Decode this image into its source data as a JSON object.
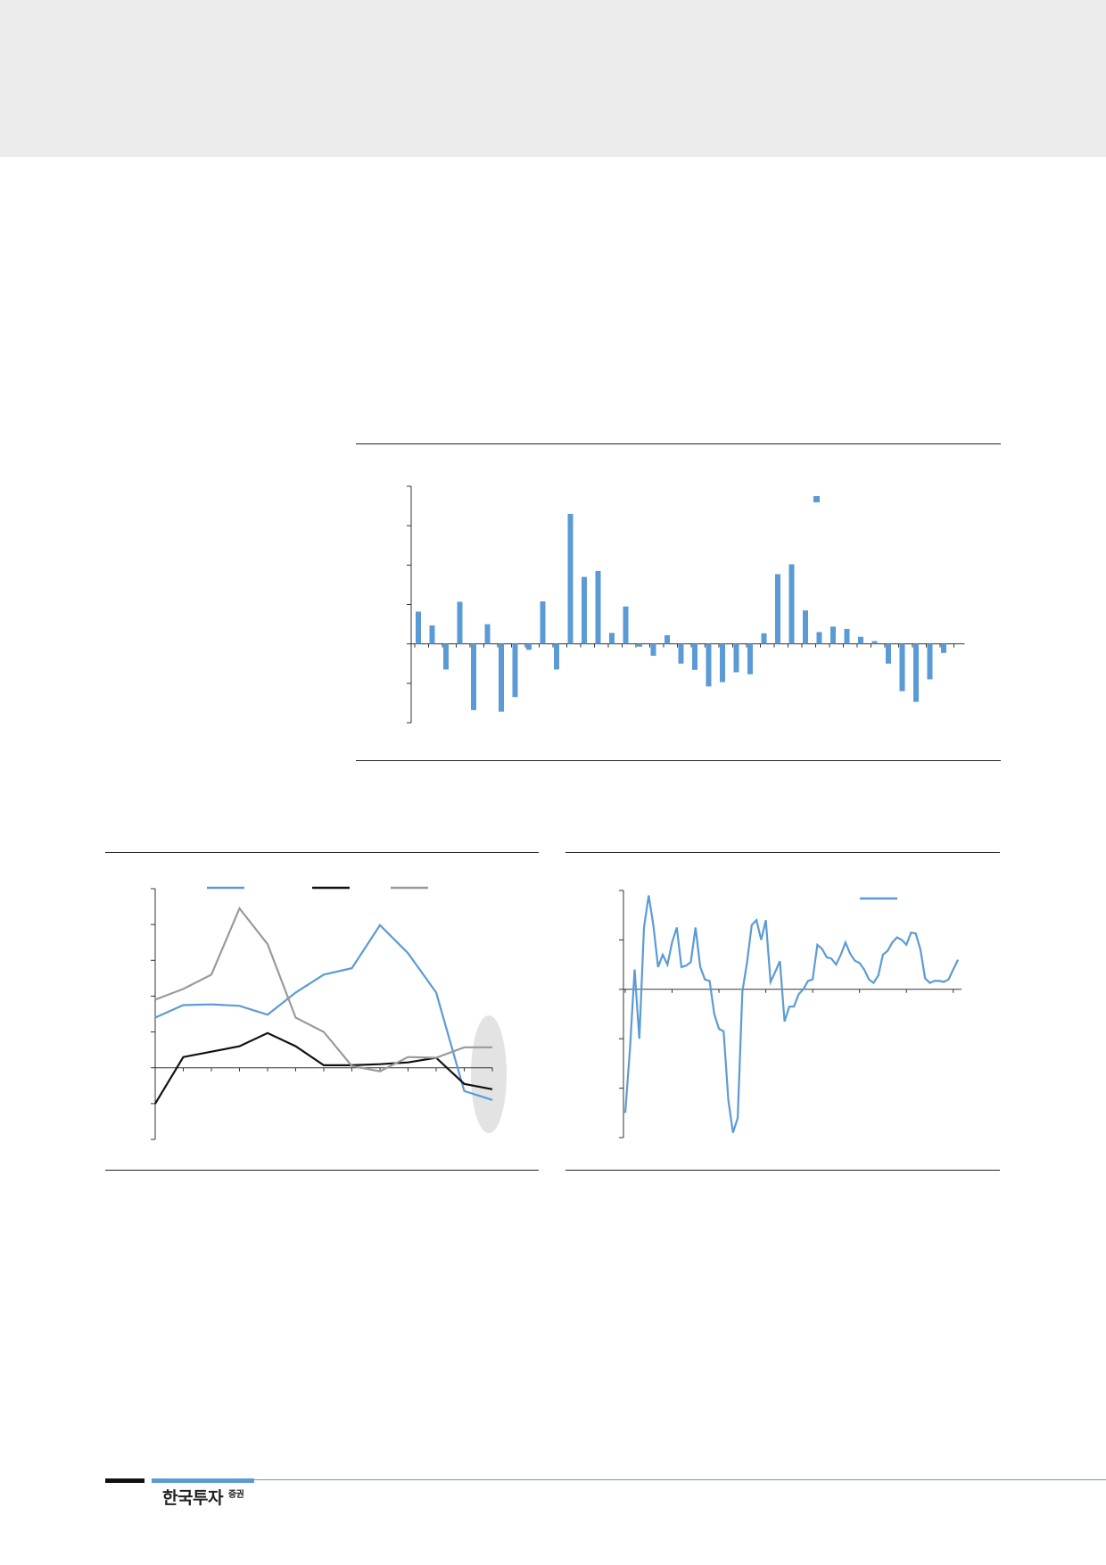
{
  "header": {
    "background": "#ebebeb"
  },
  "footer": {
    "logo_main": "한국투자",
    "logo_sub": "증권",
    "accent": "#5b9bd5"
  },
  "colors": {
    "blue": "#5b9bd5",
    "black": "#111111",
    "gray": "#9a9a9a",
    "highlight": "#e3e3e3"
  },
  "chart_data": [
    {
      "type": "bar",
      "ylim": [
        -2,
        4
      ],
      "legend": "top-right",
      "values": [
        0.82,
        0.47,
        -0.65,
        1.07,
        -1.68,
        0.5,
        -1.72,
        -1.35,
        -0.15,
        1.08,
        -0.65,
        3.3,
        1.7,
        1.85,
        0.28,
        0.95,
        -0.07,
        -0.3,
        0.22,
        -0.5,
        -0.66,
        -1.08,
        -0.97,
        -0.72,
        -0.77,
        0.27,
        1.77,
        2.02,
        0.85,
        0.3,
        0.44,
        0.38,
        0.18,
        0.07,
        -0.5,
        -1.2,
        -1.47,
        -0.9,
        -0.23
      ]
    },
    {
      "type": "line",
      "ylim": [
        -2,
        5
      ],
      "legend": "top",
      "highlight": "last-points",
      "series": [
        {
          "values": [
            1.4,
            1.75,
            1.77,
            1.73,
            1.48,
            2.1,
            2.6,
            2.78,
            3.98,
            3.2,
            2.1,
            -0.65,
            -0.9
          ]
        },
        {
          "values": [
            -1.0,
            0.3,
            0.45,
            0.6,
            0.97,
            0.6,
            0.07,
            0.07,
            0.1,
            0.15,
            0.28,
            -0.45,
            -0.6
          ]
        },
        {
          "values": [
            1.9,
            2.2,
            2.6,
            4.45,
            3.45,
            1.4,
            1.0,
            0.05,
            -0.1,
            0.3,
            0.28,
            0.57,
            0.57
          ]
        }
      ]
    },
    {
      "type": "line",
      "ylim": [
        -3,
        2
      ],
      "legend": "top-right",
      "series": [
        {
          "values": [
            -2.5,
            -1.2,
            0.4,
            -1.0,
            1.25,
            1.9,
            1.3,
            0.45,
            0.7,
            0.5,
            0.95,
            1.25,
            0.45,
            0.48,
            0.55,
            1.25,
            0.45,
            0.2,
            0.17,
            -0.5,
            -0.8,
            -0.85,
            -2.25,
            -2.9,
            -2.6,
            -0.05,
            0.55,
            1.3,
            1.4,
            1.0,
            1.4,
            0.15,
            0.35,
            0.57,
            -0.65,
            -0.35,
            -0.35,
            -0.1,
            0.0,
            0.17,
            0.2,
            0.9,
            0.82,
            0.65,
            0.62,
            0.5,
            0.7,
            0.95,
            0.72,
            0.58,
            0.53,
            0.4,
            0.2,
            0.13,
            0.28,
            0.7,
            0.78,
            0.95,
            1.05,
            1.0,
            0.9,
            1.15,
            1.13,
            0.8,
            0.22,
            0.13,
            0.17,
            0.17,
            0.15,
            0.2,
            0.4,
            0.6
          ]
        }
      ]
    }
  ]
}
